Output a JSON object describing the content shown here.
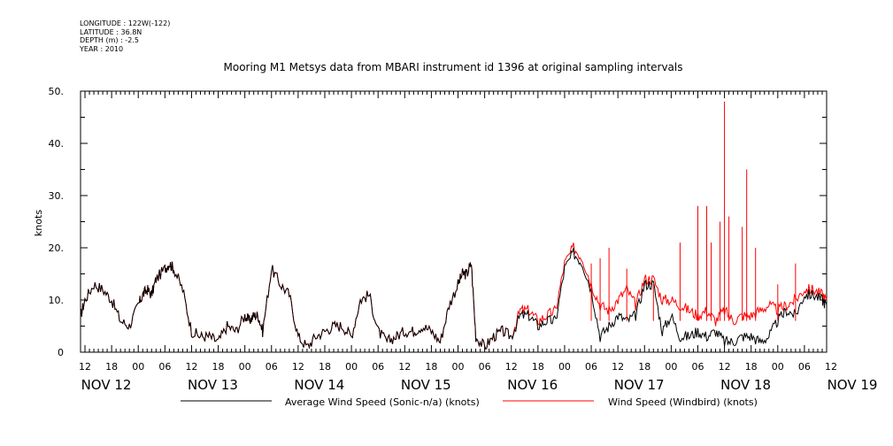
{
  "header": {
    "longitude": "LONGITUDE : 122W(-122)",
    "latitude": "LATITUDE : 36.8N",
    "depth": "DEPTH (m) : -2.5",
    "year": "YEAR : 2010"
  },
  "chart_data": {
    "type": "line",
    "title": "Mooring M1 Metsys data from MBARI instrument id 1396 at original sampling intervals",
    "ylabel": "knots",
    "xlabel": "",
    "ylim": [
      0,
      50
    ],
    "yticks": [
      "0",
      "10.",
      "20.",
      "30.",
      "40.",
      "50."
    ],
    "x_hour_labels": [
      "12",
      "18",
      "00",
      "06",
      "12",
      "18",
      "00",
      "06",
      "12",
      "18",
      "00",
      "06",
      "12",
      "18",
      "00",
      "06",
      "12",
      "18",
      "00",
      "06",
      "12",
      "18",
      "00",
      "06",
      "12",
      "18",
      "00",
      "06",
      "12"
    ],
    "x_day_labels": [
      "NOV 12",
      "NOV 13",
      "NOV 14",
      "NOV 15",
      "NOV 16",
      "NOV 17",
      "NOV 18",
      "NOV 19"
    ],
    "x_range_hours_from_nov12_00": [
      11,
      179
    ],
    "grid": false,
    "legend_position": "bottom",
    "series": [
      {
        "name": "Average Wind Speed (Sonic-n/a) (knots)",
        "color": "#000000",
        "x_hours_from_nov12_00": [
          11,
          12,
          14,
          16,
          18,
          20,
          22,
          24,
          25,
          26,
          27,
          28,
          30,
          31,
          32,
          34,
          36,
          38,
          40,
          42,
          44,
          46,
          48,
          49,
          50,
          51,
          52,
          54,
          56,
          58,
          60,
          62,
          64,
          66,
          68,
          70,
          72,
          74,
          76,
          78,
          80,
          82,
          84,
          86,
          88,
          90,
          92,
          94,
          96,
          97,
          98,
          99,
          100,
          102,
          104,
          106,
          108,
          110,
          112,
          114,
          116,
          118,
          120,
          122,
          124,
          126,
          128,
          130,
          132,
          134,
          136,
          138,
          140,
          142,
          144,
          146,
          148,
          150,
          152,
          154,
          156,
          158,
          160,
          162,
          164,
          166,
          168,
          170,
          172,
          174,
          176,
          178,
          179
        ],
        "values": [
          7,
          10,
          13,
          12,
          10,
          6,
          5,
          9,
          11,
          12,
          11,
          14,
          16,
          17,
          16,
          12,
          4,
          3,
          3,
          2,
          5,
          4,
          7,
          6,
          7,
          7,
          4,
          16,
          13,
          11,
          3,
          1,
          3,
          4,
          5,
          5,
          3,
          10,
          11,
          4,
          2,
          3,
          4,
          4,
          5,
          4,
          2,
          9,
          13,
          15,
          15,
          17,
          3,
          1,
          3,
          4,
          3,
          7,
          7,
          5,
          6,
          6,
          16,
          19,
          17,
          12,
          3,
          5,
          7,
          6,
          7,
          13,
          13,
          4,
          7,
          3,
          3,
          4,
          3,
          4,
          2,
          2,
          3,
          3,
          2,
          3,
          6,
          8,
          7,
          11,
          11,
          10,
          9
        ]
      },
      {
        "name": "Wind Speed (Windbird) (knots)",
        "color": "#ff0000",
        "x_hours_from_nov12_00": [
          11,
          12,
          14,
          16,
          18,
          20,
          22,
          24,
          25,
          26,
          27,
          28,
          30,
          31,
          32,
          34,
          36,
          38,
          40,
          42,
          44,
          46,
          48,
          49,
          50,
          51,
          52,
          54,
          56,
          58,
          60,
          62,
          64,
          66,
          68,
          70,
          72,
          74,
          76,
          78,
          80,
          82,
          84,
          86,
          88,
          90,
          92,
          94,
          96,
          97,
          98,
          99,
          100,
          102,
          104,
          106,
          108,
          110,
          112,
          114,
          116,
          118,
          120,
          122,
          124,
          126,
          128,
          130,
          132,
          134,
          136,
          138,
          140,
          142,
          144,
          146,
          148,
          150,
          152,
          154,
          156,
          158,
          160,
          162,
          164,
          166,
          168,
          170,
          172,
          174,
          176,
          178,
          179
        ],
        "values": [
          7,
          10,
          13,
          12,
          10,
          6,
          5,
          9,
          11,
          12,
          11,
          14,
          16,
          17,
          16,
          12,
          4,
          3,
          3,
          2,
          5,
          4,
          7,
          6,
          7,
          7,
          4,
          16,
          13,
          11,
          3,
          1,
          3,
          4,
          5,
          5,
          3,
          10,
          11,
          4,
          2,
          3,
          4,
          4,
          5,
          4,
          2,
          9,
          13,
          15,
          15,
          17,
          3,
          1,
          3,
          4,
          3,
          8,
          8,
          6,
          7,
          8,
          17,
          20,
          18,
          13,
          9,
          8,
          10,
          12,
          9,
          14,
          14,
          10,
          10,
          9,
          8,
          7,
          8,
          6,
          8,
          6,
          7,
          7,
          8,
          9,
          8,
          9,
          10,
          12,
          12,
          11,
          10
        ],
        "spikes": [
          {
            "x": 126,
            "y": 17
          },
          {
            "x": 128,
            "y": 18
          },
          {
            "x": 130,
            "y": 20
          },
          {
            "x": 134,
            "y": 16
          },
          {
            "x": 140,
            "y": 13
          },
          {
            "x": 146,
            "y": 21
          },
          {
            "x": 150,
            "y": 28
          },
          {
            "x": 152,
            "y": 28
          },
          {
            "x": 153,
            "y": 21
          },
          {
            "x": 155,
            "y": 25
          },
          {
            "x": 156,
            "y": 48
          },
          {
            "x": 157,
            "y": 26
          },
          {
            "x": 160,
            "y": 24
          },
          {
            "x": 161,
            "y": 35
          },
          {
            "x": 163,
            "y": 20
          },
          {
            "x": 168,
            "y": 13
          },
          {
            "x": 172,
            "y": 17
          }
        ]
      }
    ]
  }
}
